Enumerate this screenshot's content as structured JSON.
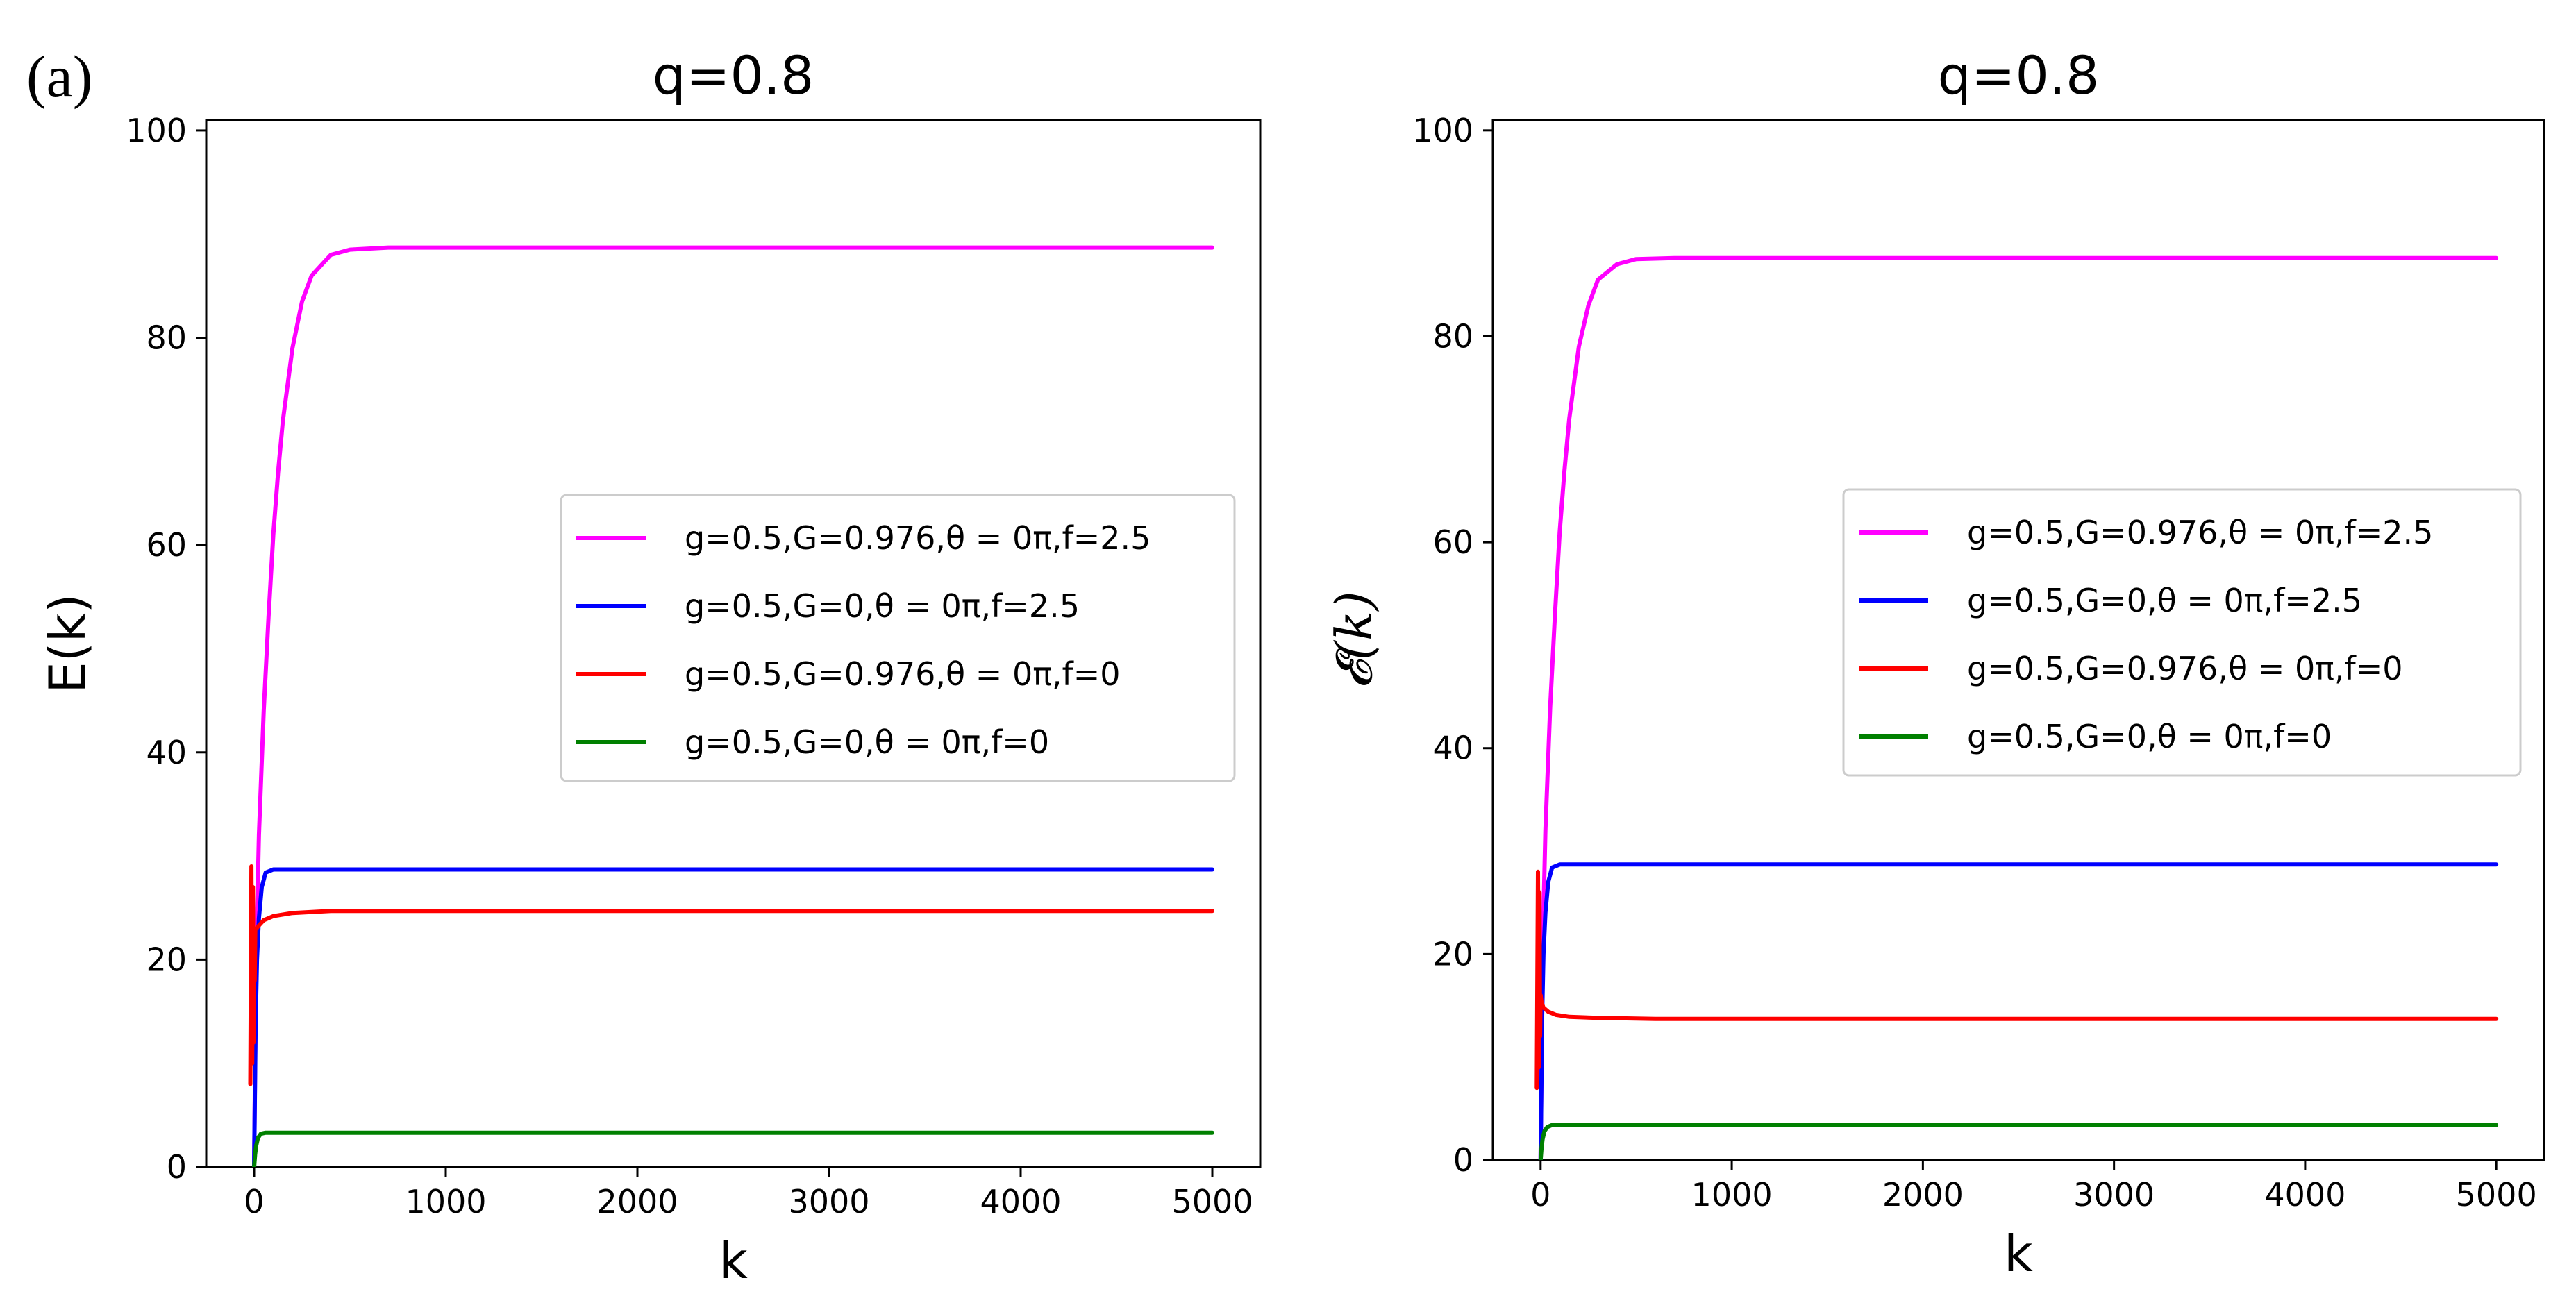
{
  "panel_label": "(a)",
  "chart_data": [
    {
      "type": "line",
      "title": "q=0.8",
      "xlabel": "k",
      "ylabel": "E(k)",
      "xlim": [
        -250,
        5250
      ],
      "ylim": [
        0,
        101
      ],
      "xticks": [
        0,
        1000,
        2000,
        3000,
        4000,
        5000
      ],
      "yticks": [
        0,
        20,
        40,
        60,
        80,
        100
      ],
      "legend_position": "center-right",
      "series": [
        {
          "name": "g=0.5,G=0.976,θ = 0π,f=2.5",
          "color": "#ff00ff",
          "x": [
            0,
            10,
            25,
            50,
            75,
            100,
            125,
            150,
            200,
            250,
            300,
            400,
            500,
            700,
            1000,
            2000,
            3000,
            4000,
            5000
          ],
          "y": [
            0,
            20,
            32,
            44,
            53,
            61,
            67,
            72,
            79,
            83.5,
            86,
            88,
            88.5,
            88.7,
            88.7,
            88.7,
            88.7,
            88.7,
            88.7
          ]
        },
        {
          "name": "g=0.5,G=0,θ = 0π,f=2.5",
          "color": "#0000ff",
          "x": [
            0,
            8,
            15,
            25,
            40,
            60,
            100,
            200,
            1000,
            2000,
            3000,
            4000,
            5000
          ],
          "y": [
            0,
            14,
            20,
            24,
            27,
            28.4,
            28.7,
            28.7,
            28.7,
            28.7,
            28.7,
            28.7,
            28.7
          ]
        },
        {
          "name": "g=0.5,G=0.976,θ = 0π,f=0",
          "color": "#ff0000",
          "x": [
            -20,
            -14,
            -10,
            -6,
            -3,
            0,
            3,
            6,
            12,
            25,
            50,
            100,
            200,
            400,
            1000,
            2000,
            3000,
            4000,
            5000
          ],
          "y": [
            8,
            29,
            10,
            27,
            12,
            22,
            18,
            23,
            23,
            23.3,
            23.8,
            24.2,
            24.5,
            24.7,
            24.7,
            24.7,
            24.7,
            24.7,
            24.7
          ]
        },
        {
          "name": "g=0.5,G=0,θ = 0π,f=0",
          "color": "#008000",
          "x": [
            0,
            5,
            10,
            20,
            35,
            60,
            100,
            200,
            1000,
            2000,
            3000,
            4000,
            5000
          ],
          "y": [
            0,
            1.2,
            2.0,
            2.8,
            3.2,
            3.3,
            3.3,
            3.3,
            3.3,
            3.3,
            3.3,
            3.3,
            3.3
          ]
        }
      ]
    },
    {
      "type": "line",
      "title": "q=0.8",
      "xlabel": "k",
      "ylabel": "𝓔(k)",
      "xlim": [
        -250,
        5250
      ],
      "ylim": [
        0,
        101
      ],
      "xticks": [
        0,
        1000,
        2000,
        3000,
        4000,
        5000
      ],
      "yticks": [
        0,
        20,
        40,
        60,
        80,
        100
      ],
      "legend_position": "center-right",
      "series": [
        {
          "name": "g=0.5,G=0.976,θ = 0π,f=2.5",
          "color": "#ff00ff",
          "x": [
            0,
            10,
            25,
            50,
            75,
            100,
            125,
            150,
            200,
            250,
            300,
            400,
            500,
            700,
            1000,
            2000,
            3000,
            4000,
            5000
          ],
          "y": [
            0,
            20,
            32,
            44,
            53,
            61,
            67,
            72,
            79,
            83,
            85.5,
            87,
            87.5,
            87.6,
            87.6,
            87.6,
            87.6,
            87.6,
            87.6
          ]
        },
        {
          "name": "g=0.5,G=0,θ = 0π,f=2.5",
          "color": "#0000ff",
          "x": [
            0,
            8,
            15,
            25,
            40,
            60,
            100,
            200,
            1000,
            2000,
            3000,
            4000,
            5000
          ],
          "y": [
            0,
            14,
            20,
            24,
            27,
            28.4,
            28.7,
            28.7,
            28.7,
            28.7,
            28.7,
            28.7,
            28.7
          ]
        },
        {
          "name": "g=0.5,G=0.976,θ = 0π,f=0",
          "color": "#ff0000",
          "x": [
            -20,
            -14,
            -10,
            -6,
            -3,
            0,
            5,
            15,
            40,
            80,
            150,
            300,
            600,
            1000,
            2000,
            3000,
            4000,
            5000
          ],
          "y": [
            7,
            28,
            9,
            26,
            12,
            16,
            15.3,
            14.8,
            14.4,
            14.1,
            13.9,
            13.8,
            13.7,
            13.7,
            13.7,
            13.7,
            13.7,
            13.7
          ]
        },
        {
          "name": "g=0.5,G=0,θ = 0π,f=0",
          "color": "#008000",
          "x": [
            0,
            5,
            10,
            20,
            35,
            60,
            100,
            200,
            1000,
            2000,
            3000,
            4000,
            5000
          ],
          "y": [
            0,
            1.2,
            2.0,
            2.8,
            3.2,
            3.4,
            3.4,
            3.4,
            3.4,
            3.4,
            3.4,
            3.4,
            3.4
          ]
        }
      ]
    }
  ]
}
